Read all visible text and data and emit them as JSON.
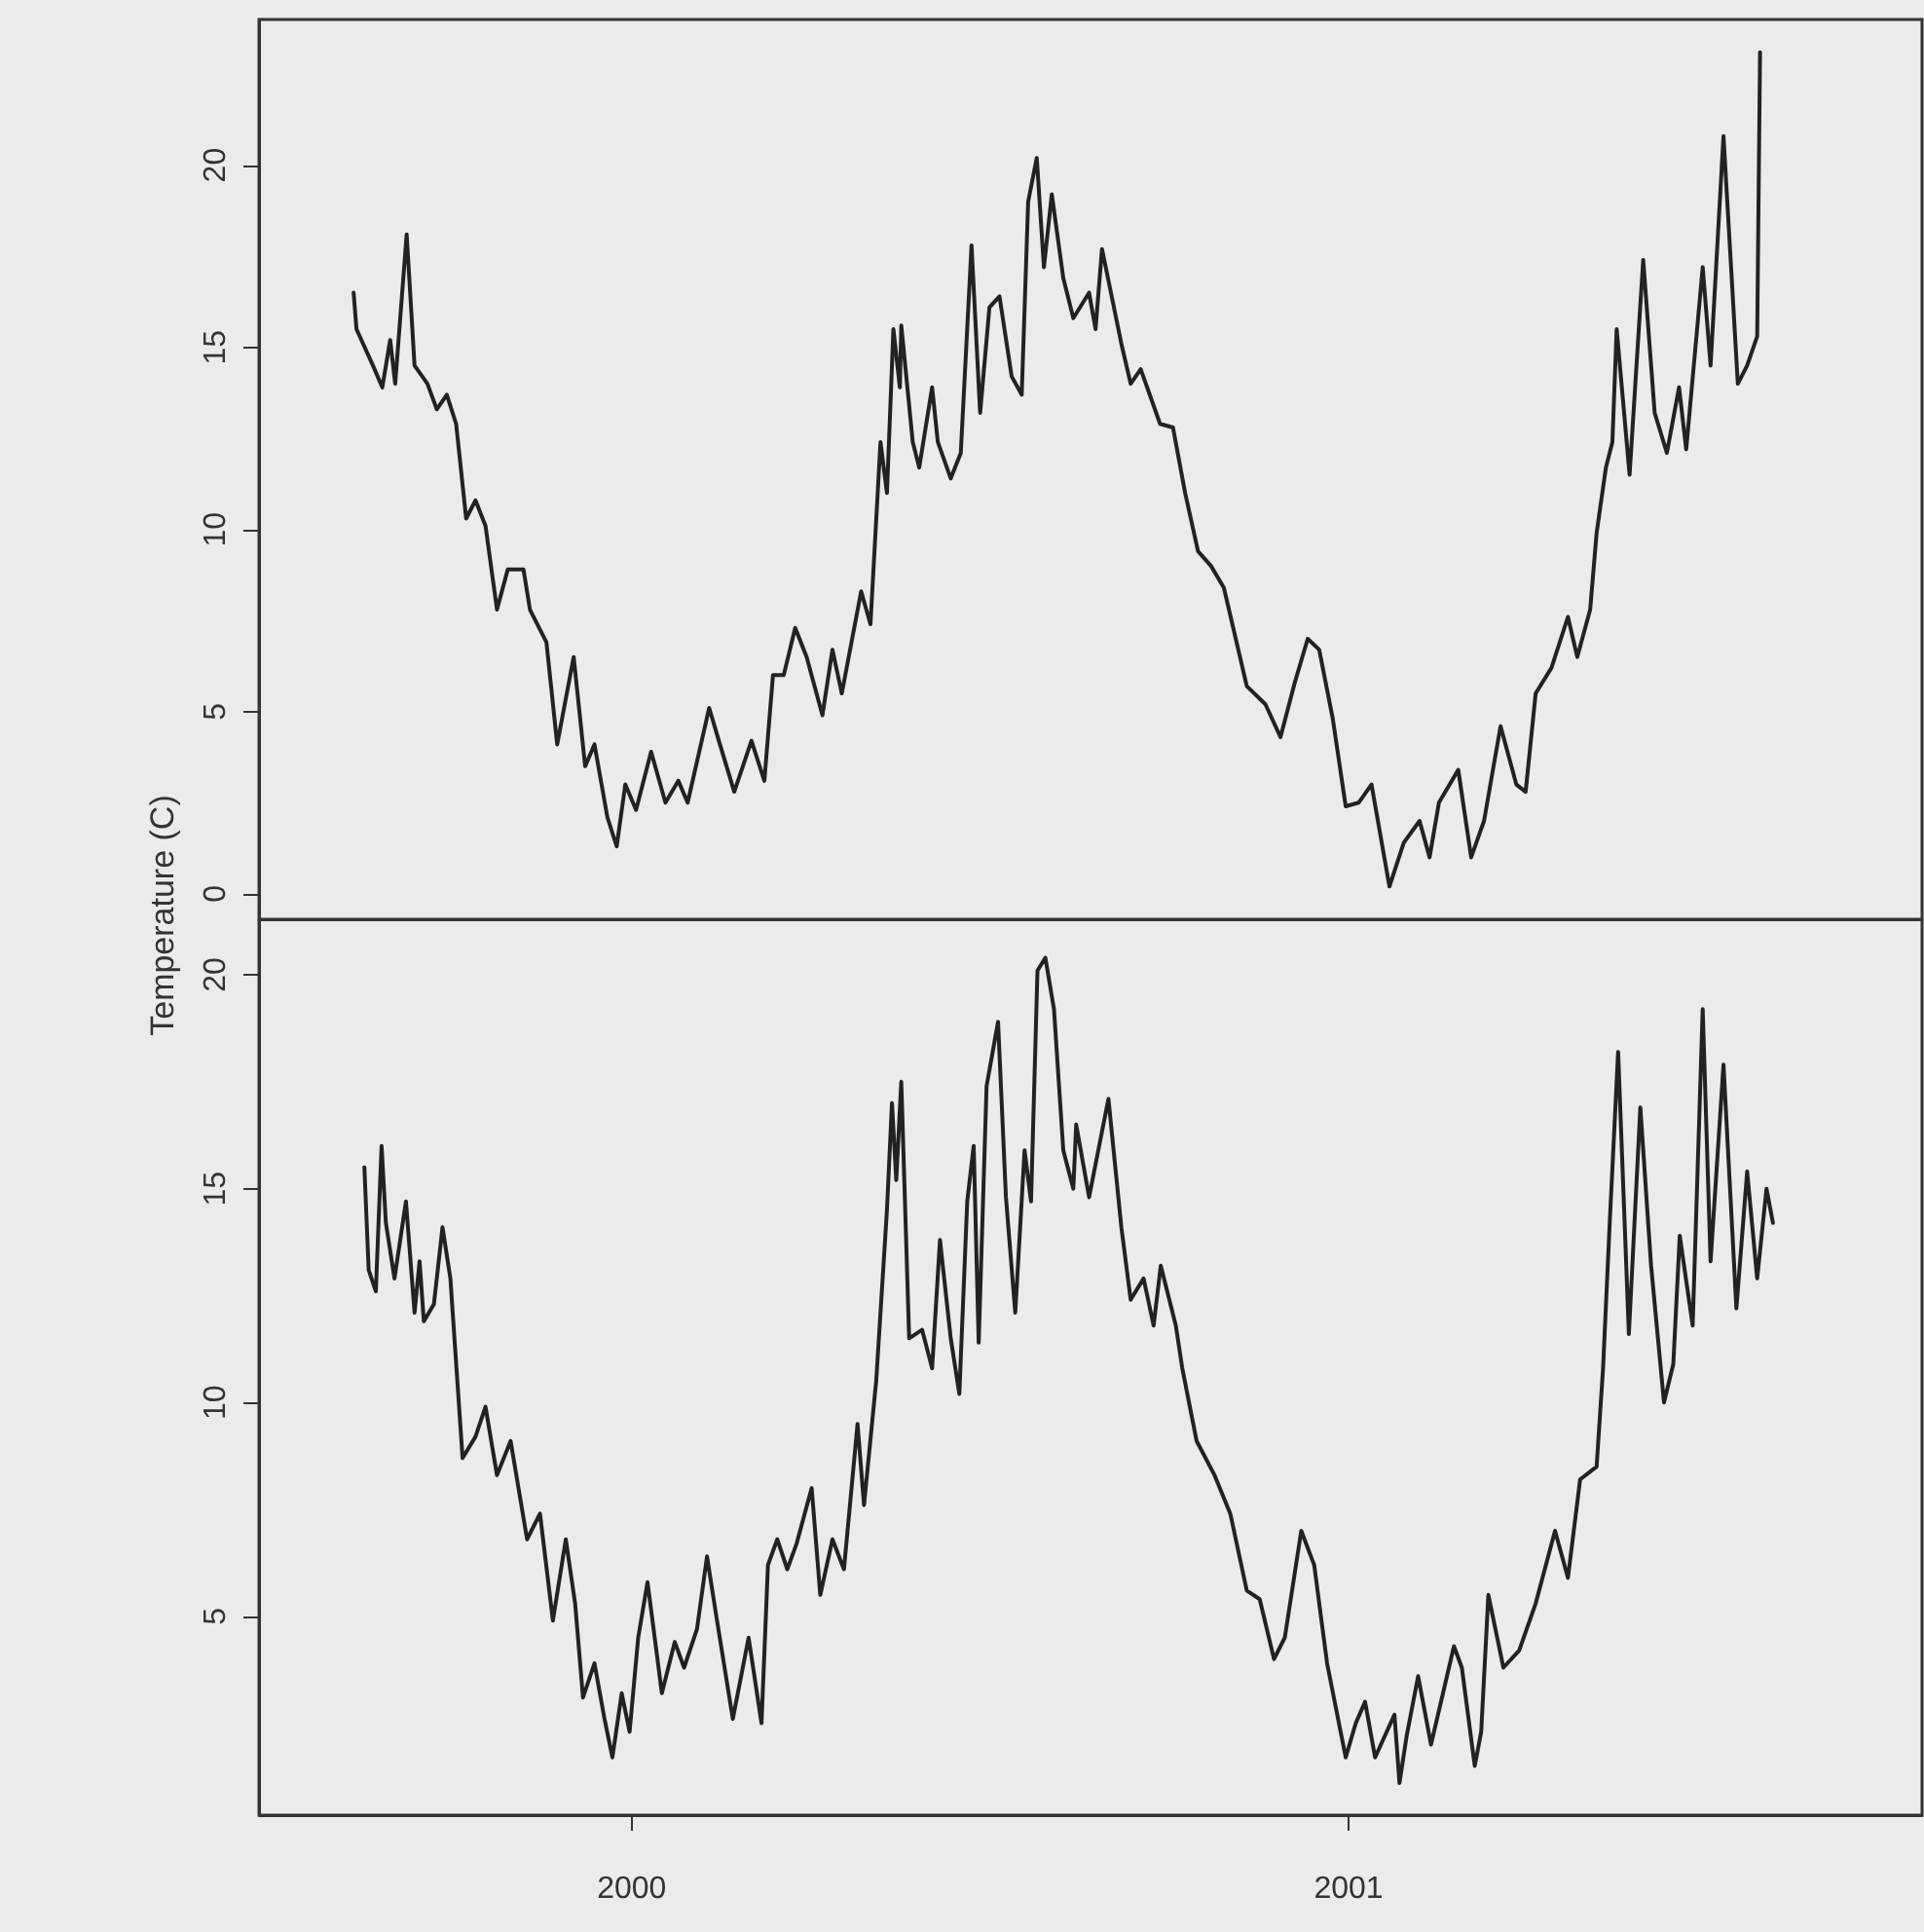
{
  "chart_data": [
    {
      "type": "line",
      "ylabel": "Temperature (C)",
      "color": "#222222",
      "marker": "none",
      "tick_labels": "y",
      "x": [
        1999.612,
        1999.616,
        1999.639,
        1999.652,
        1999.663,
        1999.67,
        1999.686,
        1999.697,
        1999.715,
        1999.728,
        1999.742,
        1999.755,
        1999.769,
        1999.782,
        1999.796,
        1999.812,
        1999.827,
        1999.849,
        1999.858,
        1999.881,
        1999.896,
        1999.919,
        1999.935,
        1999.948,
        1999.966,
        1999.979,
        1999.991,
        2000.006,
        2000.027,
        2000.047,
        2000.065,
        2000.078,
        2000.108,
        2000.123,
        2000.143,
        2000.167,
        2000.185,
        2000.197,
        2000.212,
        2000.228,
        2000.244,
        2000.266,
        2000.28,
        2000.293,
        2000.32,
        2000.333,
        2000.347,
        2000.356,
        2000.365,
        2000.374,
        2000.376,
        2000.392,
        2000.401,
        2000.419,
        2000.427,
        2000.445,
        2000.459,
        2000.474,
        2000.486,
        2000.499,
        2000.513,
        2000.53,
        2000.544,
        2000.553,
        2000.565,
        2000.575,
        2000.586,
        2000.602,
        2000.616,
        2000.638,
        2000.647,
        2000.656,
        2000.683,
        2000.696,
        2000.71,
        2000.737,
        2000.755,
        2000.772,
        2000.79,
        2000.808,
        2000.826,
        2000.858,
        2000.884,
        2000.905,
        2000.925,
        2000.943,
        2000.959,
        2000.978,
        2000.996,
        2001.014,
        2001.032,
        2001.057,
        2001.077,
        2001.099,
        2001.113,
        2001.126,
        2001.153,
        2001.171,
        2001.189,
        2001.212,
        2001.234,
        2001.247,
        2001.261,
        2001.283,
        2001.306,
        2001.319,
        2001.337,
        2001.346,
        2001.359,
        2001.368,
        2001.374,
        2001.392,
        2001.411,
        2001.427,
        2001.444,
        2001.461,
        2001.471,
        2001.494,
        2001.505,
        2001.523,
        2001.543,
        2001.556,
        2001.57,
        2001.574
      ],
      "values": [
        16.5,
        15.5,
        14.5,
        13.9,
        15.2,
        14.0,
        18.1,
        14.5,
        14.0,
        13.3,
        13.7,
        12.9,
        10.3,
        10.8,
        10.1,
        7.8,
        8.9,
        8.9,
        7.8,
        6.9,
        4.1,
        6.5,
        3.5,
        4.1,
        2.1,
        1.3,
        3.0,
        2.3,
        3.9,
        2.5,
        3.1,
        2.5,
        5.1,
        4.1,
        2.8,
        4.2,
        3.1,
        6.0,
        6.0,
        7.3,
        6.5,
        4.9,
        6.7,
        5.5,
        8.3,
        7.4,
        12.4,
        11.0,
        15.5,
        13.9,
        15.6,
        12.4,
        11.7,
        13.9,
        12.4,
        11.4,
        12.1,
        17.8,
        13.2,
        16.1,
        16.4,
        14.2,
        13.7,
        19.0,
        20.2,
        17.2,
        19.2,
        16.9,
        15.8,
        16.5,
        15.5,
        17.7,
        15.1,
        14.0,
        14.4,
        12.9,
        12.8,
        11.0,
        9.4,
        9.0,
        8.4,
        5.7,
        5.2,
        4.3,
        5.8,
        7.0,
        6.7,
        4.8,
        2.4,
        2.5,
        3.0,
        0.2,
        1.4,
        2.0,
        1.0,
        2.5,
        3.4,
        1.0,
        2.0,
        4.6,
        3.0,
        2.8,
        5.5,
        6.2,
        7.6,
        6.5,
        7.8,
        9.9,
        11.7,
        12.4,
        15.5,
        11.5,
        17.4,
        13.2,
        12.1,
        13.9,
        12.2,
        17.2,
        14.5,
        20.8,
        14.0,
        14.5,
        15.3,
        23.1
      ],
      "xlim": [
        1999.48,
        2001.8
      ],
      "ylim": [
        -0.7,
        24.0
      ],
      "yticks": [
        0,
        5,
        10,
        15,
        20
      ]
    },
    {
      "type": "line",
      "color": "#222222",
      "marker": "none",
      "x": [
        1999.627,
        1999.633,
        1999.643,
        1999.651,
        1999.657,
        1999.669,
        1999.685,
        1999.697,
        1999.704,
        1999.71,
        1999.724,
        1999.736,
        1999.747,
        1999.764,
        1999.782,
        1999.796,
        1999.812,
        1999.831,
        1999.854,
        1999.872,
        1999.89,
        1999.908,
        1999.921,
        1999.932,
        1999.948,
        1999.962,
        1999.973,
        1999.986,
        1999.997,
        2000.009,
        2000.022,
        2000.042,
        2000.06,
        2000.073,
        2000.091,
        2000.105,
        2000.118,
        2000.141,
        2000.163,
        2000.181,
        2000.19,
        2000.203,
        2000.217,
        2000.23,
        2000.251,
        2000.263,
        2000.28,
        2000.296,
        2000.315,
        2000.324,
        2000.341,
        2000.356,
        2000.363,
        2000.369,
        2000.376,
        2000.387,
        2000.405,
        2000.419,
        2000.43,
        2000.445,
        2000.457,
        2000.468,
        2000.477,
        2000.484,
        2000.495,
        2000.511,
        2000.522,
        2000.535,
        2000.548,
        2000.557,
        2000.566,
        2000.577,
        2000.589,
        2000.602,
        2000.616,
        2000.62,
        2000.638,
        2000.665,
        2000.683,
        2000.696,
        2000.714,
        2000.728,
        2000.738,
        2000.759,
        2000.768,
        2000.788,
        2000.813,
        2000.835,
        2000.858,
        2000.876,
        2000.896,
        2000.911,
        2000.934,
        2000.952,
        2000.97,
        2000.996,
        2001.01,
        2001.023,
        2001.037,
        2001.064,
        2001.071,
        2001.081,
        2001.097,
        2001.115,
        2001.147,
        2001.158,
        2001.176,
        2001.185,
        2001.195,
        2001.216,
        2001.238,
        2001.261,
        2001.288,
        2001.306,
        2001.323,
        2001.346,
        2001.355,
        2001.364,
        2001.376,
        2001.391,
        2001.407,
        2001.422,
        2001.44,
        2001.453,
        2001.462,
        2001.48,
        2001.494,
        2001.505,
        2001.523,
        2001.541,
        2001.556,
        2001.57,
        2001.583,
        2001.592
      ],
      "values": [
        15.5,
        13.1,
        12.6,
        16.0,
        14.2,
        12.9,
        14.7,
        12.1,
        13.3,
        11.9,
        12.3,
        14.1,
        12.9,
        8.7,
        9.2,
        9.9,
        8.3,
        9.1,
        6.8,
        7.4,
        4.9,
        6.8,
        5.3,
        3.1,
        3.9,
        2.6,
        1.7,
        3.2,
        2.3,
        4.5,
        5.8,
        3.2,
        4.4,
        3.8,
        4.7,
        6.4,
        5.0,
        2.6,
        4.5,
        2.5,
        6.2,
        6.8,
        6.1,
        6.7,
        8.0,
        5.5,
        6.8,
        6.1,
        9.5,
        7.6,
        10.5,
        14.5,
        17.0,
        15.2,
        17.5,
        11.5,
        11.7,
        10.8,
        13.8,
        11.5,
        10.2,
        14.7,
        16.0,
        11.4,
        17.4,
        18.9,
        14.8,
        12.1,
        15.9,
        14.7,
        20.1,
        20.4,
        19.2,
        15.9,
        15.0,
        16.5,
        14.8,
        17.1,
        14.1,
        12.4,
        12.9,
        11.8,
        13.2,
        11.8,
        10.8,
        9.1,
        8.3,
        7.4,
        5.6,
        5.4,
        4.0,
        4.5,
        7.0,
        6.2,
        3.9,
        1.7,
        2.5,
        3.0,
        1.7,
        2.7,
        1.1,
        2.2,
        3.6,
        2.0,
        4.3,
        3.8,
        1.5,
        2.3,
        5.5,
        3.8,
        4.2,
        5.3,
        7.0,
        5.9,
        8.2,
        8.5,
        10.8,
        14.1,
        18.2,
        11.6,
        16.9,
        13.2,
        10.0,
        10.9,
        13.9,
        11.8,
        19.2,
        13.3,
        17.9,
        12.2,
        15.4,
        12.9,
        15.0,
        14.2
      ],
      "xlim": [
        1999.48,
        2001.8
      ],
      "xticks": [
        2000,
        2001
      ],
      "ylim": [
        0.35,
        21.3
      ],
      "yticks": [
        5,
        10,
        15,
        20
      ]
    }
  ]
}
